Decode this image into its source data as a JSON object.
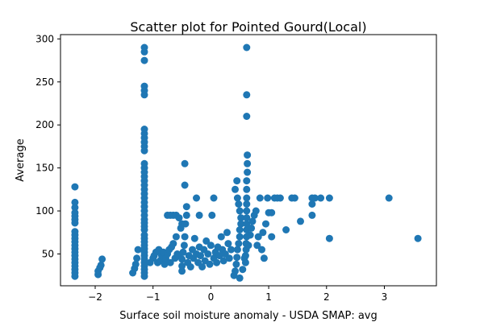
{
  "chart_data": {
    "type": "scatter",
    "title": "Scatter plot for Pointed Gourd(Local)",
    "xlabel": "Surface soil moisture anomaly  - USDA SMAP: avg",
    "ylabel": "Average",
    "xlim": [
      -2.6,
      3.9
    ],
    "ylim": [
      13,
      305
    ],
    "xticks": [
      -2,
      -1,
      0,
      1,
      2,
      3
    ],
    "yticks": [
      50,
      100,
      150,
      200,
      250,
      300
    ],
    "grid": false,
    "legend": "none",
    "marker_color": "#1f77b4",
    "series": [
      {
        "points": [
          [
            -2.35,
            24
          ],
          [
            -2.35,
            28
          ],
          [
            -2.35,
            32
          ],
          [
            -2.35,
            36
          ],
          [
            -2.35,
            40
          ],
          [
            -2.35,
            44
          ],
          [
            -2.35,
            48
          ],
          [
            -2.35,
            52
          ],
          [
            -2.35,
            56
          ],
          [
            -2.35,
            60
          ],
          [
            -2.35,
            64
          ],
          [
            -2.35,
            68
          ],
          [
            -2.35,
            72
          ],
          [
            -2.35,
            76
          ],
          [
            -2.35,
            86
          ],
          [
            -2.35,
            90
          ],
          [
            -2.35,
            94
          ],
          [
            -2.35,
            98
          ],
          [
            -2.35,
            104
          ],
          [
            -2.35,
            110
          ],
          [
            -2.35,
            128
          ],
          [
            -1.95,
            26
          ],
          [
            -1.95,
            30
          ],
          [
            -1.92,
            34
          ],
          [
            -1.9,
            37
          ],
          [
            -1.88,
            44
          ],
          [
            -1.35,
            28
          ],
          [
            -1.32,
            33
          ],
          [
            -1.3,
            38
          ],
          [
            -1.28,
            45
          ],
          [
            -1.26,
            55
          ],
          [
            -1.15,
            24
          ],
          [
            -1.15,
            28
          ],
          [
            -1.15,
            32
          ],
          [
            -1.15,
            36
          ],
          [
            -1.15,
            40
          ],
          [
            -1.15,
            44
          ],
          [
            -1.15,
            48
          ],
          [
            -1.15,
            52
          ],
          [
            -1.15,
            56
          ],
          [
            -1.15,
            60
          ],
          [
            -1.15,
            64
          ],
          [
            -1.15,
            68
          ],
          [
            -1.15,
            72
          ],
          [
            -1.15,
            78
          ],
          [
            -1.15,
            82
          ],
          [
            -1.15,
            86
          ],
          [
            -1.15,
            90
          ],
          [
            -1.15,
            95
          ],
          [
            -1.15,
            100
          ],
          [
            -1.15,
            105
          ],
          [
            -1.15,
            110
          ],
          [
            -1.15,
            115
          ],
          [
            -1.15,
            120
          ],
          [
            -1.15,
            125
          ],
          [
            -1.15,
            130
          ],
          [
            -1.15,
            135
          ],
          [
            -1.15,
            140
          ],
          [
            -1.15,
            145
          ],
          [
            -1.15,
            150
          ],
          [
            -1.15,
            155
          ],
          [
            -1.15,
            170
          ],
          [
            -1.15,
            175
          ],
          [
            -1.15,
            180
          ],
          [
            -1.15,
            185
          ],
          [
            -1.15,
            190
          ],
          [
            -1.15,
            195
          ],
          [
            -1.15,
            235
          ],
          [
            -1.15,
            240
          ],
          [
            -1.15,
            245
          ],
          [
            -1.15,
            275
          ],
          [
            -1.15,
            285
          ],
          [
            -1.15,
            290
          ],
          [
            -1.05,
            40
          ],
          [
            -1.0,
            45
          ],
          [
            -0.98,
            48
          ],
          [
            -0.95,
            52
          ],
          [
            -0.92,
            40
          ],
          [
            -0.9,
            55
          ],
          [
            -0.88,
            42
          ],
          [
            -0.85,
            48
          ],
          [
            -0.82,
            52
          ],
          [
            -0.8,
            38
          ],
          [
            -0.78,
            45
          ],
          [
            -0.75,
            50
          ],
          [
            -0.72,
            55
          ],
          [
            -0.7,
            40
          ],
          [
            -0.68,
            58
          ],
          [
            -0.65,
            62
          ],
          [
            -0.62,
            45
          ],
          [
            -0.6,
            70
          ],
          [
            -0.58,
            50
          ],
          [
            -0.55,
            48
          ],
          [
            -0.52,
            80
          ],
          [
            -0.5,
            85
          ],
          [
            -0.75,
            95
          ],
          [
            -0.7,
            95
          ],
          [
            -0.65,
            95
          ],
          [
            -0.6,
            95
          ],
          [
            -0.55,
            92
          ],
          [
            -0.5,
            30
          ],
          [
            -0.5,
            36
          ],
          [
            -0.5,
            44
          ],
          [
            -0.48,
            52
          ],
          [
            -0.46,
            60
          ],
          [
            -0.45,
            70
          ],
          [
            -0.44,
            85
          ],
          [
            -0.42,
            95
          ],
          [
            -0.42,
            105
          ],
          [
            -0.45,
            130
          ],
          [
            -0.45,
            155
          ],
          [
            -0.4,
            40
          ],
          [
            -0.38,
            48
          ],
          [
            -0.35,
            35
          ],
          [
            -0.32,
            55
          ],
          [
            -0.3,
            45
          ],
          [
            -0.28,
            68
          ],
          [
            -0.25,
            50
          ],
          [
            -0.22,
            40
          ],
          [
            -0.2,
            58
          ],
          [
            -0.2,
            95
          ],
          [
            -0.25,
            115
          ],
          [
            -0.18,
            48
          ],
          [
            -0.15,
            35
          ],
          [
            -0.12,
            55
          ],
          [
            -0.1,
            42
          ],
          [
            -0.08,
            65
          ],
          [
            -0.05,
            50
          ],
          [
            -0.02,
            38
          ],
          [
            0.0,
            60
          ],
          [
            0.02,
            95
          ],
          [
            0.05,
            115
          ],
          [
            0.05,
            45
          ],
          [
            0.08,
            52
          ],
          [
            0.1,
            40
          ],
          [
            0.12,
            58
          ],
          [
            0.15,
            48
          ],
          [
            0.18,
            70
          ],
          [
            0.2,
            55
          ],
          [
            0.22,
            42
          ],
          [
            0.25,
            50
          ],
          [
            0.28,
            75
          ],
          [
            0.3,
            62
          ],
          [
            0.32,
            45
          ],
          [
            0.35,
            55
          ],
          [
            0.4,
            25
          ],
          [
            0.42,
            30
          ],
          [
            0.44,
            38
          ],
          [
            0.45,
            46
          ],
          [
            0.46,
            55
          ],
          [
            0.48,
            62
          ],
          [
            0.5,
            70
          ],
          [
            0.5,
            78
          ],
          [
            0.52,
            85
          ],
          [
            0.52,
            92
          ],
          [
            0.5,
            100
          ],
          [
            0.48,
            108
          ],
          [
            0.46,
            115
          ],
          [
            0.42,
            125
          ],
          [
            0.45,
            135
          ],
          [
            0.5,
            22
          ],
          [
            0.55,
            32
          ],
          [
            0.58,
            45
          ],
          [
            0.6,
            40
          ],
          [
            0.6,
            48
          ],
          [
            0.61,
            55
          ],
          [
            0.61,
            62
          ],
          [
            0.62,
            70
          ],
          [
            0.62,
            78
          ],
          [
            0.62,
            85
          ],
          [
            0.62,
            92
          ],
          [
            0.62,
            100
          ],
          [
            0.62,
            108
          ],
          [
            0.62,
            115
          ],
          [
            0.62,
            125
          ],
          [
            0.62,
            135
          ],
          [
            0.63,
            145
          ],
          [
            0.63,
            155
          ],
          [
            0.63,
            165
          ],
          [
            0.62,
            210
          ],
          [
            0.62,
            235
          ],
          [
            0.62,
            290
          ],
          [
            0.65,
            60
          ],
          [
            0.68,
            72
          ],
          [
            0.7,
            80
          ],
          [
            0.72,
            88
          ],
          [
            0.75,
            95
          ],
          [
            0.78,
            100
          ],
          [
            0.8,
            60
          ],
          [
            0.82,
            70
          ],
          [
            0.85,
            115
          ],
          [
            0.88,
            55
          ],
          [
            0.9,
            75
          ],
          [
            0.92,
            45
          ],
          [
            0.95,
            85
          ],
          [
            0.98,
            115
          ],
          [
            1.0,
            98
          ],
          [
            1.05,
            70
          ],
          [
            1.05,
            98
          ],
          [
            1.1,
            115
          ],
          [
            1.15,
            115
          ],
          [
            1.2,
            115
          ],
          [
            1.3,
            78
          ],
          [
            1.4,
            115
          ],
          [
            1.45,
            115
          ],
          [
            1.55,
            88
          ],
          [
            1.75,
            108
          ],
          [
            1.75,
            115
          ],
          [
            1.75,
            95
          ],
          [
            1.8,
            115
          ],
          [
            1.9,
            115
          ],
          [
            2.05,
            115
          ],
          [
            2.05,
            68
          ],
          [
            3.08,
            115
          ],
          [
            3.58,
            68
          ]
        ]
      }
    ]
  }
}
